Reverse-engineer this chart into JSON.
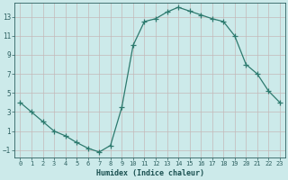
{
  "x": [
    0,
    1,
    2,
    3,
    4,
    5,
    6,
    7,
    8,
    9,
    10,
    11,
    12,
    13,
    14,
    15,
    16,
    17,
    18,
    19,
    20,
    21,
    22,
    23
  ],
  "y": [
    4,
    3,
    2,
    1,
    0.5,
    -0.2,
    -0.8,
    -1.2,
    -0.5,
    3.5,
    10,
    12.5,
    12.8,
    13.5,
    14,
    13.6,
    13.2,
    12.8,
    12.5,
    11,
    8,
    7,
    5.2,
    4
  ],
  "line_color": "#2d7a6e",
  "marker": "P",
  "marker_size": 2.5,
  "bg_color": "#cceaea",
  "grid_color": "#c4b8b8",
  "xlabel": "Humidex (Indice chaleur)",
  "xlabel_color": "#1a5050",
  "yticks": [
    -1,
    1,
    3,
    5,
    7,
    9,
    11,
    13
  ],
  "xticks": [
    0,
    1,
    2,
    3,
    4,
    5,
    6,
    7,
    8,
    9,
    10,
    11,
    12,
    13,
    14,
    15,
    16,
    17,
    18,
    19,
    20,
    21,
    22,
    23
  ],
  "ylim": [
    -1.8,
    14.5
  ],
  "xlim": [
    -0.5,
    23.5
  ],
  "tick_color": "#2d6060",
  "spine_color": "#2d6060"
}
